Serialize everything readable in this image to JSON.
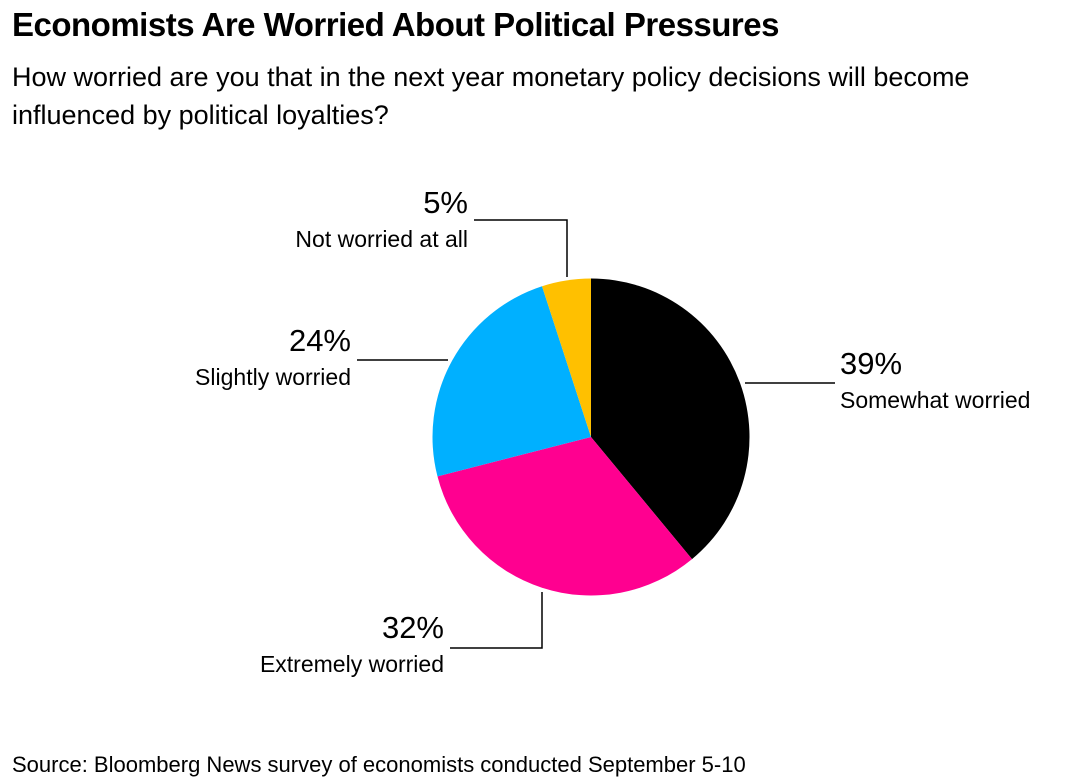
{
  "chart_data": {
    "type": "pie",
    "title": "Economists Are Worried About Political Pressures",
    "subtitle": "How worried are you that in the next year monetary policy decisions will become influenced by political loyalties?",
    "source": "Source: Bloomberg News survey of economists conducted September 5-10",
    "categories": [
      "Somewhat worried",
      "Extremely worried",
      "Slightly worried",
      "Not worried at all"
    ],
    "values": [
      39,
      32,
      24,
      5
    ],
    "value_labels": [
      "39%",
      "32%",
      "24%",
      "5%"
    ],
    "colors": [
      "#000000",
      "#ff0090",
      "#00b0ff",
      "#ffc000"
    ]
  }
}
